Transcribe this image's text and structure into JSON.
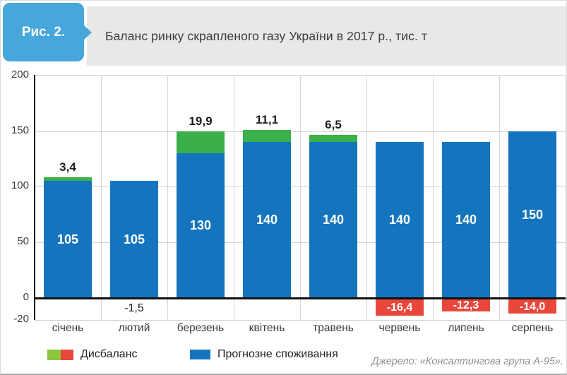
{
  "header": {
    "badge_label": "Рис. 2.",
    "title": "Баланс ринку скрапленого газу України в 2017 р., тис. т"
  },
  "legend": {
    "items": [
      {
        "label": "Дисбаланс"
      },
      {
        "label": "Прогнозне споживання"
      }
    ]
  },
  "footer": {
    "source": "Джерело: «Консалтингова група А-95»."
  },
  "colors": {
    "badge_blue": "#47A7DB",
    "header_gray": "#E8E8E8",
    "bar_blue": "#1475BE",
    "bar_green": "#3BB04A",
    "bar_red": "#E9473C",
    "legend_green": "#8BC63E",
    "grid": "#D6D6D6",
    "axis": "#161616"
  },
  "chart_data": {
    "type": "bar",
    "stacked": true,
    "title": "Баланс ринку скрапленого газу України в 2017 р., тис. т",
    "unit": "тис. т",
    "categories": [
      "січень",
      "лютий",
      "березень",
      "квітень",
      "травень",
      "червень",
      "липень",
      "серпень"
    ],
    "series": [
      {
        "name": "Прогнозне споживання",
        "role": "consumption",
        "values": [
          105,
          105,
          130,
          140,
          140,
          140,
          140,
          150
        ],
        "labels": [
          "105",
          "105",
          "130",
          "140",
          "140",
          "140",
          "140",
          "150"
        ]
      },
      {
        "name": "Дисбаланс",
        "role": "disbalance",
        "values": [
          3.4,
          -1.5,
          19.9,
          11.1,
          6.5,
          -16.4,
          -12.3,
          -14.0
        ],
        "labels": [
          "3,4",
          "-1,5",
          "19,9",
          "11,1",
          "6,5",
          "-16,4",
          "-12,3",
          "-14,0"
        ]
      }
    ],
    "ylim": [
      -20,
      200
    ],
    "yticks": [
      200,
      150,
      100,
      50,
      0,
      -20
    ],
    "grid": true,
    "legend_position": "bottom"
  }
}
